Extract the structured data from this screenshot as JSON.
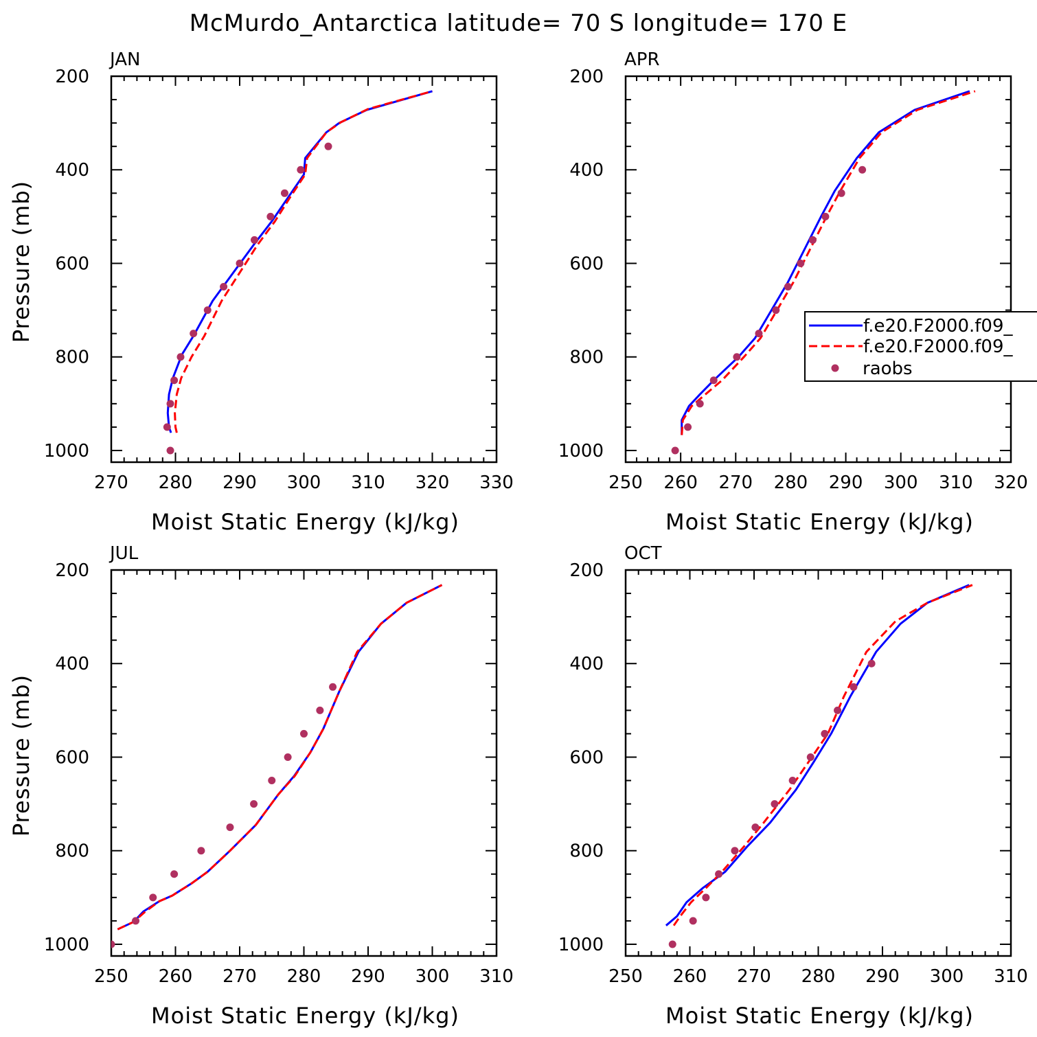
{
  "title": "McMurdo_Antarctica  latitude= 70 S longitude= 170 E",
  "colors": {
    "series_model_a": "#0000ff",
    "series_model_b": "#ff0000",
    "raobs": "#b03060",
    "frame": "#000000"
  },
  "legend": {
    "items": [
      {
        "label": "f.e20.F2000.f09_",
        "style": "solid",
        "color": "#0000ff"
      },
      {
        "label": "f.e20.F2000.f09_",
        "style": "dashed",
        "color": "#ff0000"
      },
      {
        "label": "raobs",
        "style": "marker",
        "color": "#b03060"
      }
    ],
    "placement": "right, inside APR panel, clipped by figure edge"
  },
  "chart_data": [
    {
      "type": "line",
      "panel": "JAN",
      "xlabel": "Moist Static Energy (kJ/kg)",
      "ylabel": "Pressure (mb)",
      "xlim": [
        270,
        330
      ],
      "ylim": [
        1025,
        200
      ],
      "y_inverted": true,
      "xticks": [
        270,
        280,
        290,
        300,
        310,
        320,
        330
      ],
      "yticks": [
        200,
        400,
        600,
        800,
        1000
      ],
      "series": [
        {
          "name": "f.e20.F2000.f09_",
          "style": "solid",
          "color": "#0000ff",
          "points": [
            [
              279.3,
              962
            ],
            [
              279.0,
              950
            ],
            [
              278.8,
              920
            ],
            [
              279.0,
              880
            ],
            [
              279.6,
              845
            ],
            [
              281.0,
              795
            ],
            [
              282.8,
              755
            ],
            [
              285.8,
              680
            ],
            [
              289.0,
              620
            ],
            [
              292.2,
              560
            ],
            [
              295.0,
              510
            ],
            [
              297.5,
              460
            ],
            [
              300.0,
              410
            ],
            [
              300.2,
              375
            ],
            [
              303.5,
              320
            ],
            [
              305.5,
              300
            ],
            [
              309.8,
              272
            ],
            [
              320.0,
              232
            ]
          ]
        },
        {
          "name": "f.e20.F2000.f09_",
          "style": "dashed",
          "color": "#ff0000",
          "points": [
            [
              280.2,
              962
            ],
            [
              280.0,
              950
            ],
            [
              279.9,
              920
            ],
            [
              280.2,
              880
            ],
            [
              280.9,
              845
            ],
            [
              282.5,
              800
            ],
            [
              284.5,
              755
            ],
            [
              287.2,
              680
            ],
            [
              290.0,
              620
            ],
            [
              292.8,
              560
            ],
            [
              295.5,
              510
            ],
            [
              297.8,
              460
            ],
            [
              300.2,
              410
            ],
            [
              300.5,
              375
            ],
            [
              303.5,
              320
            ],
            [
              305.8,
              298
            ],
            [
              310.0,
              270
            ],
            [
              320.0,
              232
            ]
          ]
        },
        {
          "name": "raobs",
          "style": "marker",
          "color": "#b03060",
          "points": [
            [
              303.8,
              350
            ],
            [
              299.5,
              400
            ],
            [
              297.0,
              450
            ],
            [
              294.8,
              500
            ],
            [
              292.3,
              550
            ],
            [
              290.0,
              600
            ],
            [
              287.5,
              650
            ],
            [
              285.0,
              700
            ],
            [
              282.8,
              750
            ],
            [
              280.8,
              800
            ],
            [
              279.8,
              850
            ],
            [
              279.2,
              900
            ],
            [
              278.7,
              950
            ],
            [
              279.2,
              1000
            ]
          ]
        }
      ]
    },
    {
      "type": "line",
      "panel": "APR",
      "xlabel": "Moist Static Energy (kJ/kg)",
      "ylabel": "",
      "xlim": [
        250,
        320
      ],
      "ylim": [
        1025,
        200
      ],
      "y_inverted": true,
      "xticks": [
        250,
        260,
        270,
        280,
        290,
        300,
        310,
        320
      ],
      "yticks": [
        200,
        400,
        600,
        800,
        1000
      ],
      "series": [
        {
          "name": "f.e20.F2000.f09_",
          "style": "solid",
          "color": "#0000ff",
          "points": [
            [
              260.2,
              967
            ],
            [
              260.2,
              935
            ],
            [
              261.5,
              905
            ],
            [
              263.5,
              880
            ],
            [
              266.0,
              850
            ],
            [
              270.5,
              800
            ],
            [
              273.5,
              760
            ],
            [
              276.5,
              700
            ],
            [
              279.5,
              640
            ],
            [
              282.5,
              570
            ],
            [
              285.5,
              500
            ],
            [
              288.0,
              445
            ],
            [
              292.0,
              375
            ],
            [
              296.0,
              320
            ],
            [
              302.5,
              272
            ],
            [
              312.5,
              232
            ]
          ]
        },
        {
          "name": "f.e20.F2000.f09_",
          "style": "dashed",
          "color": "#ff0000",
          "points": [
            [
              260.2,
              967
            ],
            [
              260.4,
              935
            ],
            [
              262.0,
              905
            ],
            [
              264.5,
              880
            ],
            [
              267.5,
              850
            ],
            [
              271.5,
              800
            ],
            [
              274.5,
              760
            ],
            [
              277.5,
              700
            ],
            [
              280.5,
              640
            ],
            [
              283.5,
              570
            ],
            [
              286.5,
              500
            ],
            [
              289.0,
              445
            ],
            [
              292.5,
              375
            ],
            [
              296.5,
              320
            ],
            [
              303.0,
              272
            ],
            [
              313.5,
              232
            ]
          ]
        },
        {
          "name": "raobs",
          "style": "marker",
          "color": "#b03060",
          "points": [
            [
              293.0,
              400
            ],
            [
              289.2,
              450
            ],
            [
              286.3,
              500
            ],
            [
              284.0,
              550
            ],
            [
              281.8,
              600
            ],
            [
              279.5,
              650
            ],
            [
              277.3,
              700
            ],
            [
              274.2,
              750
            ],
            [
              270.2,
              800
            ],
            [
              266.0,
              850
            ],
            [
              263.5,
              900
            ],
            [
              261.3,
              950
            ],
            [
              259.0,
              1000
            ]
          ]
        }
      ]
    },
    {
      "type": "line",
      "panel": "JUL",
      "xlabel": "Moist Static Energy (kJ/kg)",
      "ylabel": "Pressure (mb)",
      "xlim": [
        250,
        310
      ],
      "ylim": [
        1025,
        200
      ],
      "y_inverted": true,
      "xticks": [
        250,
        260,
        270,
        280,
        290,
        300,
        310
      ],
      "yticks": [
        200,
        400,
        600,
        800,
        1000
      ],
      "series": [
        {
          "name": "f.e20.F2000.f09_",
          "style": "solid",
          "color": "#0000ff",
          "points": [
            [
              251.0,
              968
            ],
            [
              253.5,
              952
            ],
            [
              255.0,
              930
            ],
            [
              257.5,
              908
            ],
            [
              259.5,
              896
            ],
            [
              262.5,
              870
            ],
            [
              265.0,
              845
            ],
            [
              268.5,
              800
            ],
            [
              272.5,
              745
            ],
            [
              276.0,
              680
            ],
            [
              278.5,
              640
            ],
            [
              281.0,
              590
            ],
            [
              283.0,
              540
            ],
            [
              285.5,
              460
            ],
            [
              288.5,
              375
            ],
            [
              292.0,
              315
            ],
            [
              296.0,
              270
            ],
            [
              301.5,
              232
            ]
          ]
        },
        {
          "name": "f.e20.F2000.f09_",
          "style": "dashed",
          "color": "#ff0000",
          "points": [
            [
              251.0,
              968
            ],
            [
              253.5,
              952
            ],
            [
              255.3,
              930
            ],
            [
              257.5,
              908
            ],
            [
              259.5,
              896
            ],
            [
              262.5,
              870
            ],
            [
              265.0,
              845
            ],
            [
              268.5,
              800
            ],
            [
              272.5,
              745
            ],
            [
              276.0,
              680
            ],
            [
              278.6,
              640
            ],
            [
              281.0,
              590
            ],
            [
              283.0,
              540
            ],
            [
              285.5,
              460
            ],
            [
              288.3,
              375
            ],
            [
              292.0,
              315
            ],
            [
              296.0,
              270
            ],
            [
              301.5,
              232
            ]
          ]
        },
        {
          "name": "raobs",
          "style": "marker",
          "color": "#b03060",
          "points": [
            [
              284.5,
              450
            ],
            [
              282.5,
              500
            ],
            [
              280.0,
              550
            ],
            [
              277.5,
              600
            ],
            [
              275.0,
              650
            ],
            [
              272.2,
              700
            ],
            [
              268.5,
              750
            ],
            [
              264.0,
              800
            ],
            [
              259.8,
              850
            ],
            [
              256.5,
              900
            ],
            [
              253.8,
              950
            ],
            [
              250.0,
              1000
            ]
          ]
        }
      ]
    },
    {
      "type": "line",
      "panel": "OCT",
      "xlabel": "Moist Static Energy (kJ/kg)",
      "ylabel": "",
      "xlim": [
        250,
        310
      ],
      "ylim": [
        1025,
        200
      ],
      "y_inverted": true,
      "xticks": [
        250,
        260,
        270,
        280,
        290,
        300,
        310
      ],
      "yticks": [
        200,
        400,
        600,
        800,
        1000
      ],
      "series": [
        {
          "name": "f.e20.F2000.f09_",
          "style": "solid",
          "color": "#0000ff",
          "points": [
            [
              256.3,
              960
            ],
            [
              258.0,
              940
            ],
            [
              259.5,
              910
            ],
            [
              262.0,
              880
            ],
            [
              265.5,
              845
            ],
            [
              269.0,
              790
            ],
            [
              272.5,
              740
            ],
            [
              276.5,
              670
            ],
            [
              279.3,
              610
            ],
            [
              282.0,
              550
            ],
            [
              285.0,
              470
            ],
            [
              289.0,
              375
            ],
            [
              292.8,
              315
            ],
            [
              297.0,
              270
            ],
            [
              303.5,
              232
            ]
          ]
        },
        {
          "name": "f.e20.F2000.f09_",
          "style": "dashed",
          "color": "#ff0000",
          "points": [
            [
              257.5,
              960
            ],
            [
              258.5,
              940
            ],
            [
              260.2,
              910
            ],
            [
              262.5,
              880
            ],
            [
              265.0,
              845
            ],
            [
              268.5,
              790
            ],
            [
              271.5,
              740
            ],
            [
              275.5,
              670
            ],
            [
              278.5,
              610
            ],
            [
              281.5,
              550
            ],
            [
              284.0,
              470
            ],
            [
              287.5,
              375
            ],
            [
              292.0,
              310
            ],
            [
              297.0,
              270
            ],
            [
              304.0,
              232
            ]
          ]
        },
        {
          "name": "raobs",
          "style": "marker",
          "color": "#b03060",
          "points": [
            [
              288.3,
              400
            ],
            [
              285.5,
              450
            ],
            [
              283.0,
              500
            ],
            [
              281.0,
              550
            ],
            [
              278.8,
              600
            ],
            [
              276.0,
              650
            ],
            [
              273.2,
              700
            ],
            [
              270.2,
              750
            ],
            [
              267.0,
              800
            ],
            [
              264.5,
              850
            ],
            [
              262.5,
              900
            ],
            [
              260.5,
              950
            ],
            [
              257.3,
              1000
            ]
          ]
        }
      ]
    }
  ]
}
